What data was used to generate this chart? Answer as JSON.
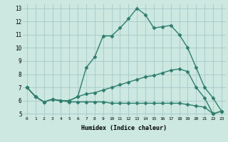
{
  "xlabel": "Humidex (Indice chaleur)",
  "x_values": [
    0,
    1,
    2,
    3,
    4,
    5,
    6,
    7,
    8,
    9,
    10,
    11,
    12,
    13,
    14,
    15,
    16,
    17,
    18,
    19,
    20,
    21,
    22,
    23
  ],
  "line1": [
    7.0,
    6.3,
    5.9,
    6.1,
    6.0,
    6.0,
    6.3,
    8.5,
    9.3,
    10.9,
    10.9,
    11.5,
    12.2,
    13.0,
    12.5,
    11.5,
    11.6,
    11.7,
    11.0,
    10.0,
    8.5,
    7.0,
    6.2,
    5.2
  ],
  "line2": [
    7.0,
    6.3,
    5.9,
    6.1,
    6.0,
    6.0,
    6.3,
    6.5,
    6.6,
    6.8,
    7.0,
    7.2,
    7.4,
    7.6,
    7.8,
    7.9,
    8.1,
    8.3,
    8.4,
    8.2,
    7.0,
    6.2,
    5.0,
    5.2
  ],
  "line3": [
    7.0,
    6.3,
    5.9,
    6.1,
    6.0,
    5.9,
    5.9,
    5.9,
    5.9,
    5.9,
    5.8,
    5.8,
    5.8,
    5.8,
    5.8,
    5.8,
    5.8,
    5.8,
    5.8,
    5.7,
    5.6,
    5.5,
    5.0,
    5.2
  ],
  "line_color": "#2e7d6e",
  "bg_color": "#cce8e0",
  "grid_color": "#aacccc",
  "ylim": [
    4.8,
    13.3
  ],
  "yticks": [
    5,
    6,
    7,
    8,
    9,
    10,
    11,
    12,
    13
  ],
  "xticks": [
    0,
    1,
    2,
    3,
    4,
    5,
    6,
    7,
    8,
    9,
    10,
    11,
    12,
    13,
    14,
    15,
    16,
    17,
    18,
    19,
    20,
    21,
    22,
    23
  ],
  "marker": "D",
  "markersize": 2.5,
  "linewidth": 1.0
}
